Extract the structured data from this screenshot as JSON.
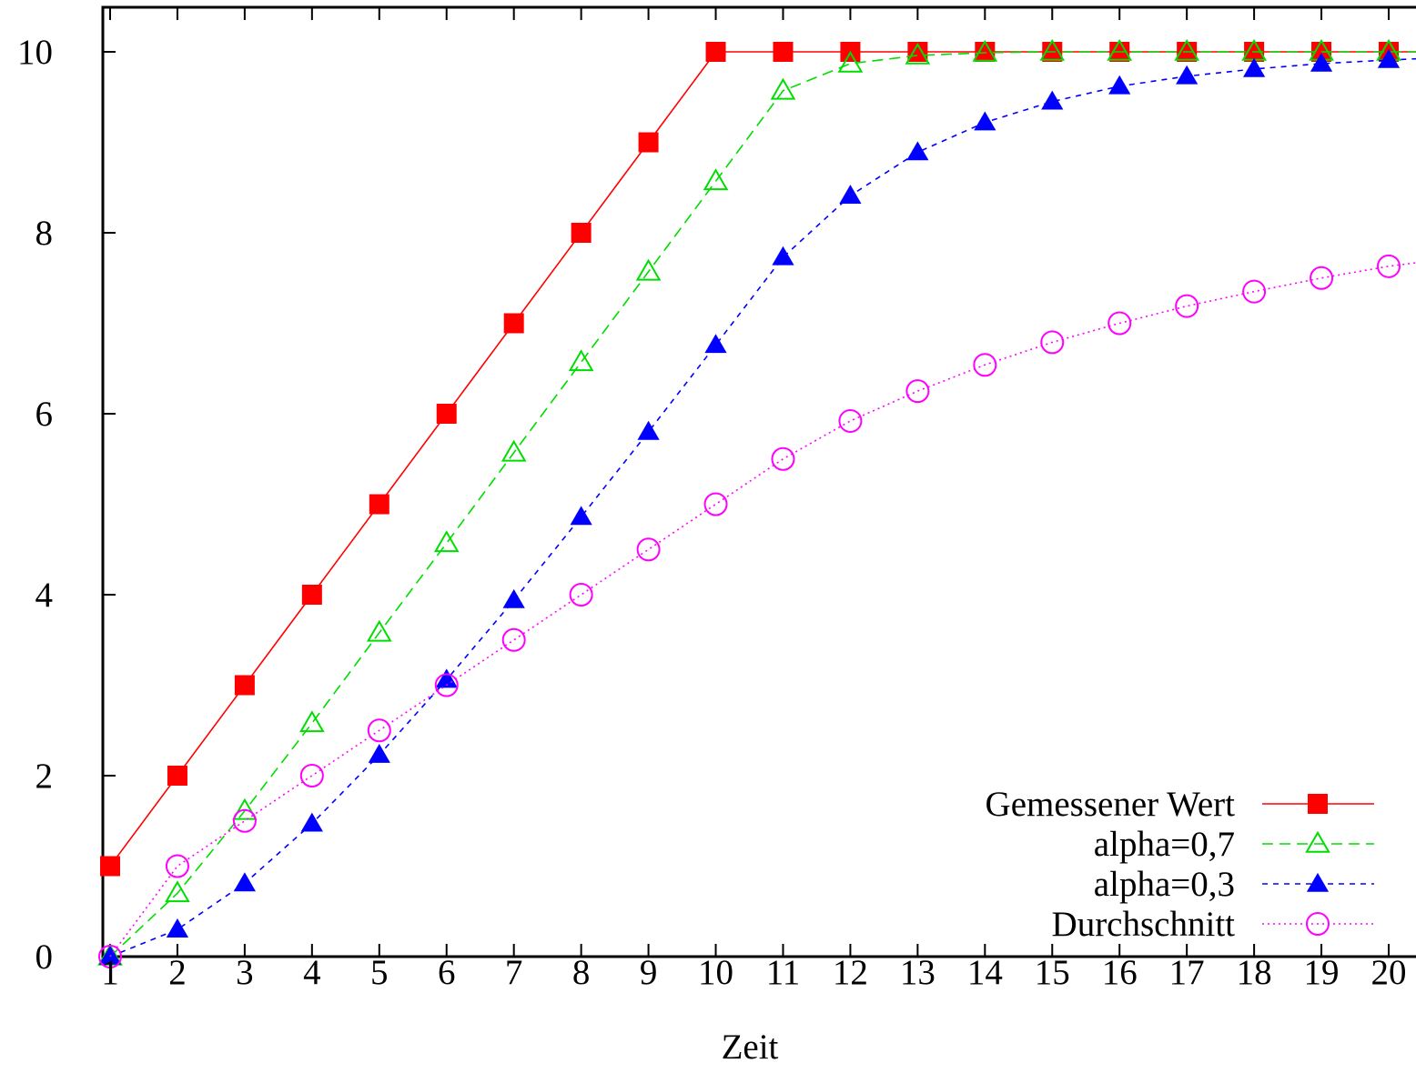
{
  "chart_data": {
    "type": "line",
    "xlabel": "Zeit",
    "ylabel": "",
    "xlim": [
      0.1,
      20.4
    ],
    "ylim": [
      0,
      10.5
    ],
    "xticks": [
      1,
      2,
      3,
      4,
      5,
      6,
      7,
      8,
      9,
      10,
      11,
      12,
      13,
      14,
      15,
      16,
      17,
      18,
      19,
      20
    ],
    "yticks": [
      0,
      2,
      4,
      6,
      8,
      10
    ],
    "grid": false,
    "legend_position": "bottom-right",
    "x": [
      1,
      2,
      3,
      4,
      5,
      6,
      7,
      8,
      9,
      10,
      11,
      12,
      13,
      14,
      15,
      16,
      17,
      18,
      19,
      20
    ],
    "series": [
      {
        "name": "Gemessener Wert",
        "color": "#ff0000",
        "marker": "filled-square",
        "line": "solid",
        "values": [
          1,
          2,
          3,
          4,
          5,
          6,
          7,
          8,
          9,
          10,
          10,
          10,
          10,
          10,
          10,
          10,
          10,
          10,
          10,
          10
        ],
        "trailing_value": 10
      },
      {
        "name": "alpha=0,7",
        "color": "#00dd00",
        "marker": "open-triangle",
        "line": "dashed",
        "values": [
          0,
          0.7,
          1.61,
          2.58,
          3.58,
          4.57,
          5.57,
          6.57,
          7.57,
          8.57,
          9.57,
          9.87,
          9.96,
          9.99,
          10,
          10,
          10,
          10,
          10,
          10
        ],
        "trailing_value": 10
      },
      {
        "name": "alpha=0,3",
        "color": "#0000ff",
        "marker": "filled-triangle",
        "line": "short-dashed",
        "values": [
          0,
          0.3,
          0.81,
          1.47,
          2.23,
          3.06,
          3.94,
          4.86,
          5.8,
          6.76,
          7.73,
          8.41,
          8.89,
          9.22,
          9.45,
          9.62,
          9.73,
          9.81,
          9.87,
          9.91
        ],
        "trailing_value": 9.93
      },
      {
        "name": "Durchschnitt",
        "color": "#ff00ff",
        "marker": "open-circle",
        "line": "dotted",
        "values": [
          0,
          1,
          1.5,
          2,
          2.5,
          3,
          3.5,
          4,
          4.5,
          5,
          5.5,
          5.92,
          6.25,
          6.54,
          6.79,
          7,
          7.19,
          7.35,
          7.5,
          7.63
        ],
        "trailing_value": 7.69
      }
    ]
  }
}
